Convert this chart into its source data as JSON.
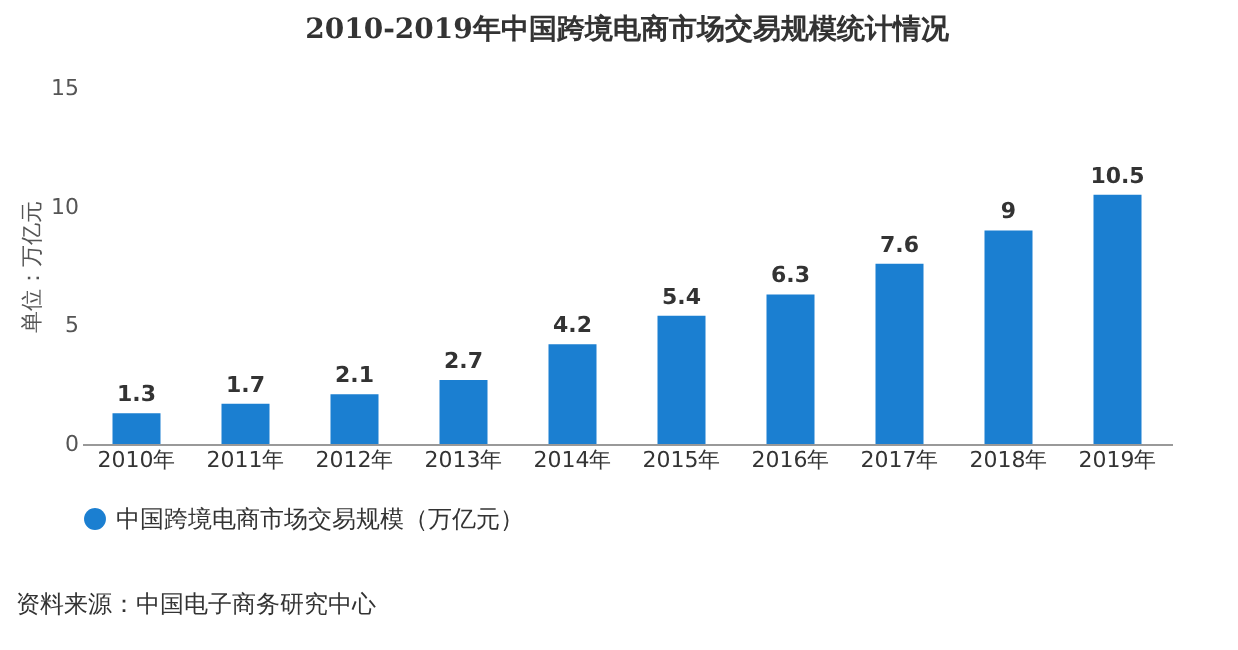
{
  "chart_data": {
    "type": "bar",
    "title": "2010-2019年中国跨境电商市场交易规模统计情况",
    "ylabel": "单位：万亿元",
    "categories": [
      "2010年",
      "2011年",
      "2012年",
      "2013年",
      "2014年",
      "2015年",
      "2016年",
      "2017年",
      "2018年",
      "2019年"
    ],
    "series": [
      {
        "name": "中国跨境电商市场交易规模（万亿元）",
        "color": "#1b7fd1",
        "values": [
          1.3,
          1.7,
          2.1,
          2.7,
          4.2,
          5.4,
          6.3,
          7.6,
          9,
          10.5
        ]
      }
    ],
    "ylim": [
      0,
      15
    ],
    "yticks": [
      0,
      5,
      10,
      15
    ],
    "grid": false,
    "legend": "bottom",
    "data_labels": true,
    "annotations": [
      "资料来源：中国电子商务研究中心"
    ]
  }
}
